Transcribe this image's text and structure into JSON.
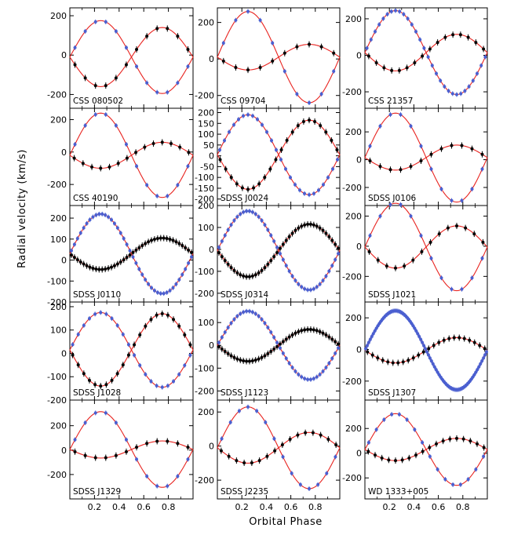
{
  "chart_data": {
    "type": "scatter",
    "xlabel": "Orbital Phase",
    "ylabel": "Radial velocity (km/s)",
    "xlim": [
      0,
      1
    ],
    "xticks": [
      0.2,
      0.4,
      0.6,
      0.8
    ],
    "xtick_labels": [
      "0.2",
      "0.4",
      "0.6",
      "0.8"
    ],
    "colors": {
      "model": "#e8231f",
      "primary_points": "#4a5fd0",
      "secondary_points": "#000000"
    },
    "panels": [
      {
        "name": "CSS 080502",
        "ylim": [
          -270,
          240
        ],
        "yticks": [
          -200,
          0,
          200
        ],
        "K_primary": 185,
        "K_secondary": 150,
        "gamma": -10,
        "n_primary": 12,
        "n_secondary": 12
      },
      {
        "name": "CSS 09704",
        "ylim": [
          -270,
          280
        ],
        "yticks": [
          -200,
          0,
          200
        ],
        "K_primary": 250,
        "K_secondary": 70,
        "gamma": 10,
        "n_primary": 10,
        "n_secondary": 10
      },
      {
        "name": "CSS 21357",
        "ylim": [
          -290,
          260
        ],
        "yticks": [
          -200,
          0,
          200
        ],
        "K_primary": 230,
        "K_secondary": 100,
        "gamma": 15,
        "n_primary": 30,
        "n_secondary": 16
      },
      {
        "name": "CSS 40190",
        "ylim": [
          -330,
          270
        ],
        "yticks": [
          -200,
          0,
          200
        ],
        "K_primary": 260,
        "K_secondary": 80,
        "gamma": -20,
        "n_primary": 12,
        "n_secondary": 14
      },
      {
        "name": "SDSS J0024",
        "ylim": [
          -230,
          220
        ],
        "yticks": [
          -200,
          -150,
          -100,
          -50,
          0,
          50,
          100,
          150,
          200
        ],
        "K_primary": 185,
        "K_secondary": 160,
        "gamma": 5,
        "n_primary": 26,
        "n_secondary": 22
      },
      {
        "name": "SDSS J0106",
        "ylim": [
          -330,
          370
        ],
        "yticks": [
          -200,
          0,
          200
        ],
        "K_primary": 320,
        "K_secondary": 90,
        "gamma": 15,
        "n_primary": 12,
        "n_secondary": 12
      },
      {
        "name": "SDSS J0110",
        "ylim": [
          -200,
          260
        ],
        "yticks": [
          -200,
          -100,
          0,
          100,
          200
        ],
        "K_primary": 190,
        "K_secondary": 75,
        "gamma": 30,
        "n_primary": 40,
        "n_secondary": 40
      },
      {
        "name": "SDSS J0314",
        "ylim": [
          -240,
          200
        ],
        "yticks": [
          -200,
          -100,
          0,
          100,
          200
        ],
        "K_primary": 180,
        "K_secondary": 120,
        "gamma": -5,
        "n_primary": 40,
        "n_secondary": 40
      },
      {
        "name": "SDSS J1021",
        "ylim": [
          -370,
          270
        ],
        "yticks": [
          -200,
          0,
          200
        ],
        "K_primary": 290,
        "K_secondary": 140,
        "gamma": -5,
        "n_primary": 12,
        "n_secondary": 14
      },
      {
        "name": "SDSS J1028",
        "ylim": [
          -200,
          220
        ],
        "yticks": [
          -200,
          -100,
          0,
          100,
          200
        ],
        "K_primary": 160,
        "K_secondary": 155,
        "gamma": 15,
        "n_primary": 22,
        "n_secondary": 22
      },
      {
        "name": "SDSS J1123",
        "ylim": [
          -240,
          190
        ],
        "yticks": [
          -200,
          -100,
          0,
          100
        ],
        "K_primary": 150,
        "K_secondary": 70,
        "gamma": 0,
        "n_primary": 40,
        "n_secondary": 40
      },
      {
        "name": "SDSS J1307",
        "ylim": [
          -320,
          300
        ],
        "yticks": [
          -200,
          0,
          200
        ],
        "K_primary": 250,
        "K_secondary": 80,
        "gamma": -5,
        "n_primary": 80,
        "n_secondary": 24
      },
      {
        "name": "SDSS J1329",
        "ylim": [
          -400,
          410
        ],
        "yticks": [
          -200,
          0,
          200
        ],
        "K_primary": 310,
        "K_secondary": 70,
        "gamma": 5,
        "n_primary": 12,
        "n_secondary": 12
      },
      {
        "name": "SDSS J2235",
        "ylim": [
          -310,
          270
        ],
        "yticks": [
          -200,
          0,
          200
        ],
        "K_primary": 240,
        "K_secondary": 90,
        "gamma": -10,
        "n_primary": 14,
        "n_secondary": 16
      },
      {
        "name": "WD 1333+005",
        "ylim": [
          -370,
          430
        ],
        "yticks": [
          -200,
          0,
          200
        ],
        "K_primary": 290,
        "K_secondary": 90,
        "gamma": 30,
        "n_primary": 16,
        "n_secondary": 18
      }
    ]
  }
}
